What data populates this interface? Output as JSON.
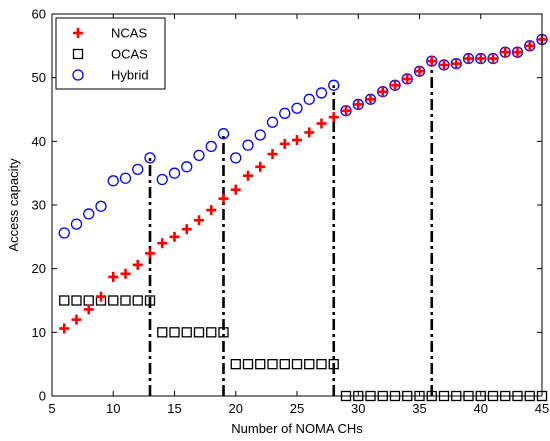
{
  "chart_data": {
    "type": "scatter",
    "xlabel": "Number of NOMA CHs",
    "ylabel": "Access capacity",
    "xlim": [
      5,
      45
    ],
    "ylim": [
      0,
      60
    ],
    "xticks": [
      5,
      10,
      15,
      20,
      25,
      30,
      35,
      40,
      45
    ],
    "yticks": [
      0,
      10,
      20,
      30,
      40,
      50,
      60
    ],
    "grid": false,
    "legend_position": "top-left",
    "series": [
      {
        "name": "NCAS",
        "marker": "plus",
        "color": "#ff0000",
        "x": [
          6,
          7,
          8,
          9,
          10,
          11,
          12,
          13,
          14,
          15,
          16,
          17,
          18,
          19,
          20,
          21,
          22,
          23,
          24,
          25,
          26,
          27,
          28,
          29,
          30,
          31,
          32,
          33,
          34,
          35,
          36,
          37,
          38,
          39,
          40,
          41,
          42,
          43,
          44,
          45
        ],
        "y": [
          10.6,
          12.0,
          13.6,
          15.6,
          18.7,
          19.2,
          20.6,
          22.4,
          24.0,
          25.0,
          26.2,
          27.6,
          29.2,
          31.0,
          32.4,
          34.6,
          36.0,
          38.0,
          39.6,
          40.2,
          41.4,
          42.8,
          43.8,
          44.8,
          45.8,
          46.6,
          47.8,
          48.8,
          49.8,
          51.0,
          52.6,
          52.0,
          52.2,
          53.0,
          53.0,
          53.0,
          54.0,
          54.0,
          55.0,
          56.0
        ]
      },
      {
        "name": "OCAS",
        "marker": "square",
        "color": "#000000",
        "x": [
          6,
          7,
          8,
          9,
          10,
          11,
          12,
          13,
          14,
          15,
          16,
          17,
          18,
          19,
          20,
          21,
          22,
          23,
          24,
          25,
          26,
          27,
          28,
          29,
          30,
          31,
          32,
          33,
          34,
          35,
          36,
          37,
          38,
          39,
          40,
          41,
          42,
          43,
          44,
          45
        ],
        "y": [
          15,
          15,
          15,
          15,
          15,
          15,
          15,
          15,
          10,
          10,
          10,
          10,
          10,
          10,
          5,
          5,
          5,
          5,
          5,
          5,
          5,
          5,
          5,
          0,
          0,
          0,
          0,
          0,
          0,
          0,
          0,
          0,
          0,
          0,
          0,
          0,
          0,
          0,
          0,
          0
        ]
      },
      {
        "name": "Hybrid",
        "marker": "circle",
        "color": "#0000ff",
        "x": [
          6,
          7,
          8,
          9,
          10,
          11,
          12,
          13,
          14,
          15,
          16,
          17,
          18,
          19,
          20,
          21,
          22,
          23,
          24,
          25,
          26,
          27,
          28,
          29,
          30,
          31,
          32,
          33,
          34,
          35,
          36,
          37,
          38,
          39,
          40,
          41,
          42,
          43,
          44,
          45
        ],
        "y": [
          25.6,
          27.0,
          28.6,
          29.8,
          33.8,
          34.2,
          35.6,
          37.4,
          34.0,
          35.0,
          36.0,
          37.8,
          39.2,
          41.2,
          37.4,
          39.4,
          41.0,
          43.0,
          44.4,
          45.2,
          46.6,
          47.6,
          48.8,
          44.8,
          45.8,
          46.6,
          47.8,
          48.8,
          49.8,
          51.0,
          52.6,
          52.0,
          52.2,
          53.0,
          53.0,
          53.0,
          54.0,
          54.0,
          55.0,
          56.0
        ]
      }
    ],
    "annotations": [
      {
        "type": "vertical-dashdot-line",
        "x": 13,
        "y_from": 0,
        "y_to": 37.4
      },
      {
        "type": "vertical-dashdot-line",
        "x": 19,
        "y_from": 0,
        "y_to": 41.2
      },
      {
        "type": "vertical-dashdot-line",
        "x": 28,
        "y_from": 0,
        "y_to": 48.8
      },
      {
        "type": "vertical-dashdot-line",
        "x": 36,
        "y_from": 0,
        "y_to": 52.6
      }
    ]
  }
}
